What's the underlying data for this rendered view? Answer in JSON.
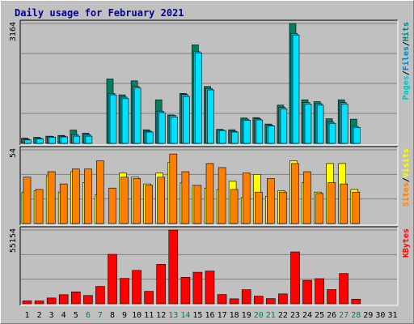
{
  "chart_data": {
    "type": "bar",
    "title": "Daily usage for February 2021",
    "categories": [
      "1",
      "2",
      "3",
      "4",
      "5",
      "6",
      "7",
      "8",
      "9",
      "10",
      "11",
      "12",
      "13",
      "14",
      "15",
      "16",
      "17",
      "18",
      "19",
      "20",
      "21",
      "22",
      "23",
      "24",
      "25",
      "26",
      "27",
      "28",
      "29",
      "30",
      "31"
    ],
    "weekend_days": [
      "6",
      "7",
      "13",
      "14",
      "20",
      "21",
      "27",
      "28"
    ],
    "panels": [
      {
        "id": "hits_files_pages",
        "ymax_label": "3164",
        "ymax": 3164,
        "legend": [
          "Pages",
          "/",
          "Files",
          "/",
          "Hits"
        ],
        "legend_colors": [
          "#00c0c0",
          "#000000",
          "#0080c0",
          "#000000",
          "#008080"
        ],
        "series": [
          {
            "name": "Hits",
            "color": "#008060",
            "values": [
              140,
              160,
              190,
              210,
              350,
              270,
              0,
              1700,
              1280,
              1650,
              360,
              1150,
              750,
              1320,
              2600,
              1500,
              370,
              360,
              670,
              680,
              510,
              1010,
              3164,
              1150,
              1100,
              650,
              1150,
              640,
              0,
              0,
              0
            ]
          },
          {
            "name": "Files",
            "color": "#00b0d0",
            "values": [
              110,
              140,
              180,
              190,
              230,
              230,
              0,
              1320,
              1220,
              1500,
              320,
              850,
              740,
              1290,
              2420,
              1450,
              350,
              320,
              640,
              650,
              480,
              950,
              2900,
              1080,
              1050,
              560,
              1080,
              450,
              0,
              0,
              0
            ]
          },
          {
            "name": "Pages",
            "color": "#00e0ff",
            "values": [
              90,
              120,
              160,
              170,
              190,
              190,
              0,
              1280,
              1180,
              1460,
              300,
              810,
              700,
              1240,
              2390,
              1410,
              340,
              300,
              610,
              620,
              460,
              910,
              2860,
              1040,
              1010,
              530,
              1040,
              420,
              0,
              0,
              0
            ]
          }
        ]
      },
      {
        "id": "visits_sites",
        "ymax_label": "54",
        "ymax": 54,
        "legend": [
          "Sites",
          "/",
          "Visits"
        ],
        "legend_colors": [
          "#ff8000",
          "#000000",
          "#ffff00"
        ],
        "series": [
          {
            "name": "Visits",
            "color": "#ffff00",
            "values": [
              23,
              24,
              35,
              23,
              38,
              30,
              21,
              0,
              37,
              34,
              29,
              37,
              45,
              30,
              28,
              26,
              25,
              31,
              19,
              36,
              20,
              24,
              46,
              30,
              23,
              44,
              44,
              25,
              0,
              0,
              0
            ]
          },
          {
            "name": "Sites",
            "color": "#ff8000",
            "values": [
              34,
              25,
              38,
              29,
              40,
              40,
              46,
              26,
              34,
              33,
              28,
              34,
              51,
              38,
              28,
              44,
              41,
              25,
              37,
              23,
              33,
              23,
              44,
              38,
              22,
              30,
              29,
              23,
              0,
              0,
              0
            ]
          }
        ]
      },
      {
        "id": "kbytes",
        "ymax_label": "55154",
        "ymax": 55154,
        "legend": [
          "KBytes"
        ],
        "legend_colors": [
          "#ff0000"
        ],
        "series": [
          {
            "name": "KBytes",
            "color": "#ff0000",
            "values": [
              2100,
              2100,
              4300,
              6800,
              8900,
              6200,
              13000,
              37000,
              19000,
              25000,
              9300,
              29500,
              55154,
              19800,
              23600,
              24500,
              6900,
              3700,
              10500,
              5700,
              3900,
              7400,
              38800,
              17500,
              18800,
              10600,
              22600,
              3400,
              0,
              0,
              0
            ]
          }
        ]
      }
    ]
  }
}
